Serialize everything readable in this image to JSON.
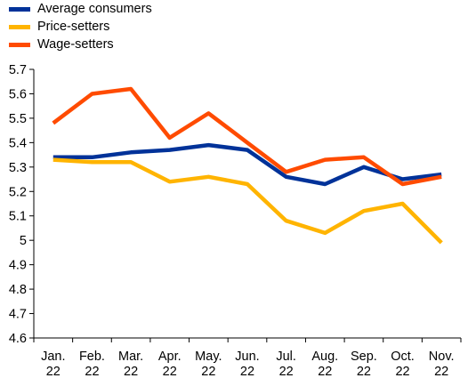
{
  "chart_data": {
    "type": "line",
    "title": "",
    "xlabel": "",
    "ylabel": "",
    "categories": [
      [
        "Jan.",
        "22"
      ],
      [
        "Feb.",
        "22"
      ],
      [
        "Mar.",
        "22"
      ],
      [
        "Apr.",
        "22"
      ],
      [
        "May.",
        "22"
      ],
      [
        "Jun.",
        "22"
      ],
      [
        "Jul.",
        "22"
      ],
      [
        "Aug.",
        "22"
      ],
      [
        "Sep.",
        "22"
      ],
      [
        "Oct.",
        "22"
      ],
      [
        "Nov.",
        "22"
      ]
    ],
    "ylim": [
      4.6,
      5.7
    ],
    "yticks": [
      "4.6",
      "4.7",
      "4.8",
      "4.9",
      "5",
      "5.1",
      "5.2",
      "5.3",
      "5.4",
      "5.5",
      "5.6",
      "5.7"
    ],
    "grid": false,
    "legend_position": "top-left",
    "series": [
      {
        "name": "Average consumers",
        "color": "#003299",
        "values": [
          5.34,
          5.34,
          5.36,
          5.37,
          5.39,
          5.37,
          5.26,
          5.23,
          5.3,
          5.25,
          5.27
        ]
      },
      {
        "name": "Price-setters",
        "color": "#FFB400",
        "values": [
          5.33,
          5.32,
          5.32,
          5.24,
          5.26,
          5.23,
          5.08,
          5.03,
          5.12,
          5.15,
          4.99
        ]
      },
      {
        "name": "Wage-setters",
        "color": "#FF4B00",
        "values": [
          5.48,
          5.6,
          5.62,
          5.42,
          5.52,
          5.4,
          5.28,
          5.33,
          5.34,
          5.23,
          5.26
        ]
      }
    ]
  }
}
